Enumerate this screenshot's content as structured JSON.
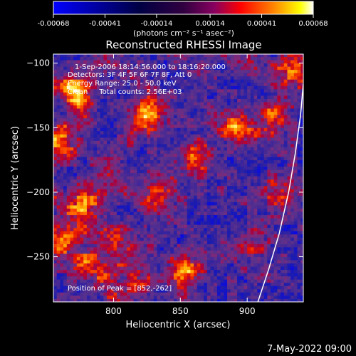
{
  "colorbar": {
    "tick_labels": [
      "-0.00068",
      "-0.00041",
      "-0.00014",
      "0.00014",
      "0.00041",
      "0.00068"
    ],
    "tick_values": [
      -0.00068,
      -0.00041,
      -0.00014,
      0.00014,
      0.00041,
      0.00068
    ],
    "units": "(photons cm⁻² s⁻¹ asec⁻²)",
    "range": [
      -0.00068,
      0.00068
    ],
    "colormap": "blue-black-purple-red-orange-yellow-white"
  },
  "chart_data": {
    "type": "heatmap",
    "title": "Reconstructed RHESSI Image",
    "xlabel": "Heliocentric X (arcsec)",
    "ylabel": "Heliocentric Y (arcsec)",
    "xlim": [
      755,
      942
    ],
    "ylim": [
      -285,
      -93
    ],
    "xticks": [
      800,
      850,
      900
    ],
    "yticks": [
      -100,
      -150,
      -200,
      -250
    ],
    "xtick_labels": [
      "800",
      "850",
      "900"
    ],
    "ytick_labels": [
      "−100",
      "−150",
      "−200",
      "−250"
    ],
    "limb_curve": [
      [
        908,
        -285
      ],
      [
        916,
        -260
      ],
      [
        924,
        -232
      ],
      [
        931,
        -200
      ],
      [
        936,
        -170
      ],
      [
        940,
        -140
      ],
      [
        942,
        -116
      ]
    ],
    "peak": [
      852,
      -262
    ],
    "bright_regions": [
      {
        "x": 852,
        "y": -262,
        "strength": 1.0
      },
      {
        "x": 826,
        "y": -140,
        "strength": 0.95
      },
      {
        "x": 773,
        "y": -120,
        "strength": 0.9
      },
      {
        "x": 780,
        "y": -205,
        "strength": 0.85
      },
      {
        "x": 800,
        "y": -236,
        "strength": 0.85
      },
      {
        "x": 760,
        "y": -165,
        "strength": 0.8
      },
      {
        "x": 835,
        "y": -200,
        "strength": 0.75
      },
      {
        "x": 862,
        "y": -172,
        "strength": 0.7
      },
      {
        "x": 890,
        "y": -150,
        "strength": 0.7
      },
      {
        "x": 920,
        "y": -140,
        "strength": 0.75
      },
      {
        "x": 925,
        "y": -198,
        "strength": 0.65
      },
      {
        "x": 780,
        "y": -255,
        "strength": 0.8
      },
      {
        "x": 758,
        "y": -230,
        "strength": 0.75
      },
      {
        "x": 818,
        "y": -268,
        "strength": 0.6
      },
      {
        "x": 905,
        "y": -240,
        "strength": 0.55
      },
      {
        "x": 935,
        "y": -105,
        "strength": 0.8
      }
    ],
    "annotations": [
      "1-Sep-2006 18:14:56.000 to 18:16:20.000",
      "Detectors: 3F 4F 5F 6F 7F 8F, Att 0",
      "Energy Range: 25.0 - 50.0 keV",
      "Clean     Total counts: 2.56E+03"
    ],
    "peak_label": "Position of Peak = [852,-262]"
  },
  "footer": {
    "date": "7-May-2022 09:00"
  },
  "colors": {
    "background": "#000000",
    "text": "#ffffff",
    "limb": "#ffffff"
  }
}
